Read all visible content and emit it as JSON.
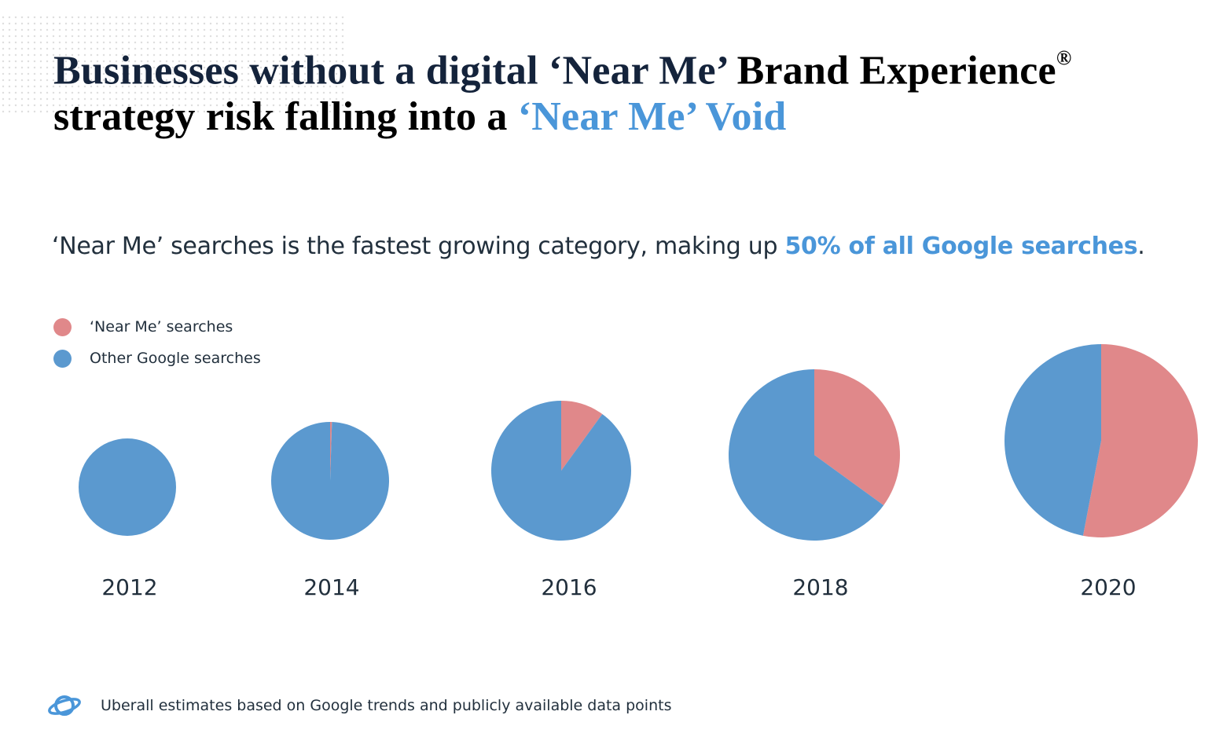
{
  "header": {
    "line1_part1": "Businesses without a digital ‘Near Me’",
    "line1_part2": " Brand Experience",
    "line1_sup": "®",
    "line2_part1": "strategy risk falling into a ",
    "line2_accent": "‘Near Me’ Void"
  },
  "subtitle": {
    "text": "‘Near Me’ searches is the fastest growing category, making up ",
    "accent": "50% of all Google searches",
    "tail": "."
  },
  "colors": {
    "near_me": "#e0888a",
    "other": "#5b99cf",
    "accent": "#4a96d9"
  },
  "chart_data": {
    "type": "pie",
    "legend_position": "top-left",
    "series_labels": [
      "‘Near Me’ searches",
      "Other Google searches"
    ],
    "charts": [
      {
        "year": "2012",
        "near_me_share": 0.0
      },
      {
        "year": "2014",
        "near_me_share": 0.005
      },
      {
        "year": "2016",
        "near_me_share": 0.1
      },
      {
        "year": "2018",
        "near_me_share": 0.35
      },
      {
        "year": "2020",
        "near_me_share": 0.53
      }
    ]
  },
  "footer": {
    "icon": "planet-icon",
    "text": "Uberall estimates based on Google trends and publicly available data points"
  }
}
